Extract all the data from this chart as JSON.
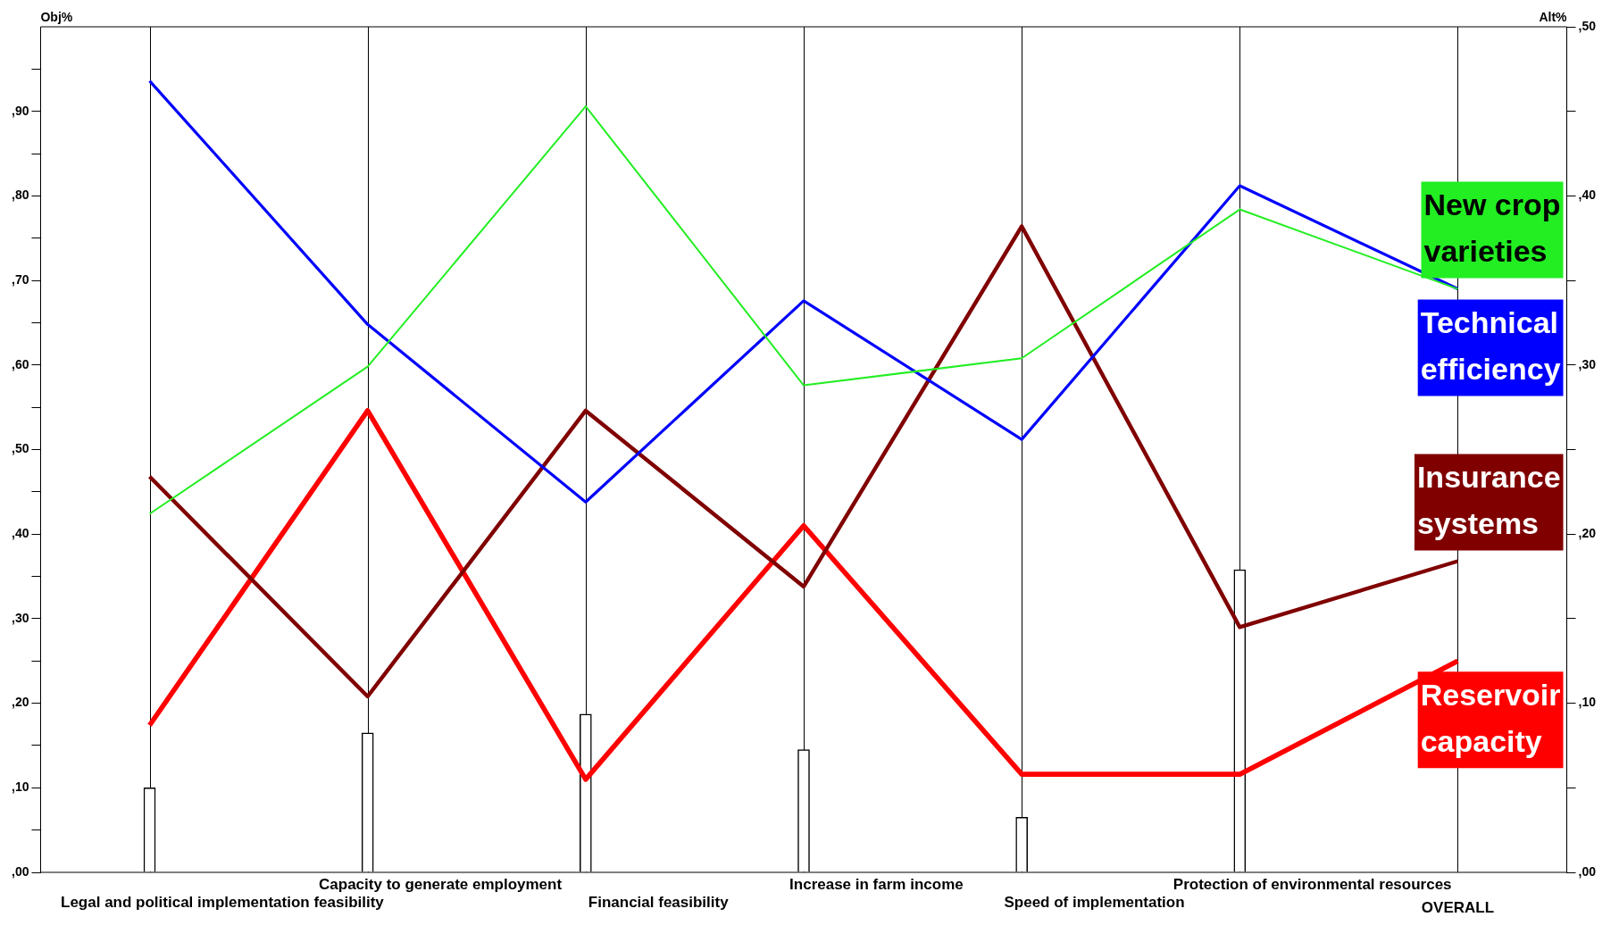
{
  "chart_data": {
    "type": "line",
    "categories": [
      "Legal and political implementation feasibility",
      "Capacity to generate employment",
      "Financial feasibility",
      "Increase in farm income",
      "Speed of implementation",
      "Protection of environmental resources",
      "OVERALL"
    ],
    "ylabel": "Obj%",
    "y2label": "Alt%",
    "ylim": [
      0,
      100
    ],
    "yticks": [
      {
        "value": 0,
        "label": ",00"
      },
      {
        "value": 5,
        "label": null
      },
      {
        "value": 10,
        "label": ",10"
      },
      {
        "value": 15,
        "label": null
      },
      {
        "value": 20,
        "label": ",20"
      },
      {
        "value": 25,
        "label": null
      },
      {
        "value": 30,
        "label": ",30"
      },
      {
        "value": 35,
        "label": null
      },
      {
        "value": 40,
        "label": ",40"
      },
      {
        "value": 45,
        "label": null
      },
      {
        "value": 50,
        "label": ",50"
      },
      {
        "value": 55,
        "label": null
      },
      {
        "value": 60,
        "label": ",60"
      },
      {
        "value": 65,
        "label": null
      },
      {
        "value": 70,
        "label": ",70"
      },
      {
        "value": 75,
        "label": null
      },
      {
        "value": 80,
        "label": ",80"
      },
      {
        "value": 85,
        "label": null
      },
      {
        "value": 90,
        "label": ",90"
      },
      {
        "value": 95,
        "label": null
      }
    ],
    "y2lim": [
      0,
      50
    ],
    "y2ticks": [
      {
        "value": 0,
        "label": ",00"
      },
      {
        "value": 5,
        "label": null
      },
      {
        "value": 10,
        "label": ",10"
      },
      {
        "value": 15,
        "label": null
      },
      {
        "value": 20,
        "label": ",20"
      },
      {
        "value": 25,
        "label": null
      },
      {
        "value": 30,
        "label": ",30"
      },
      {
        "value": 35,
        "label": null
      },
      {
        "value": 40,
        "label": ",40"
      },
      {
        "value": 45,
        "label": null
      },
      {
        "value": 50,
        "label": ",50"
      }
    ],
    "grid": "x",
    "legend": false,
    "series": [
      {
        "type": "bar",
        "color": "#ffffff",
        "values": [
          10,
          16.5,
          18.7,
          14.5,
          6.5,
          35.8,
          null
        ]
      },
      {
        "name": "New crop varieties",
        "axis": "y2",
        "color": "#22ee22",
        "values": [
          21.2,
          29.9,
          45.3,
          28.8,
          30.4,
          39.2,
          34.5
        ]
      },
      {
        "name": "Technical efficiency",
        "axis": "y2",
        "color": "#0000ff",
        "values": [
          46.8,
          32.4,
          21.9,
          33.8,
          25.6,
          40.6,
          34.5
        ]
      },
      {
        "name": "Insurance systems",
        "axis": "y2",
        "color": "#800000",
        "values": [
          23.4,
          10.4,
          27.3,
          16.9,
          38.2,
          14.5,
          18.4
        ]
      },
      {
        "name": "Reservoir capacity",
        "axis": "y2",
        "color": "#ff0000",
        "values": [
          8.7,
          27.3,
          5.5,
          20.5,
          5.8,
          5.8,
          12.5
        ]
      }
    ]
  }
}
